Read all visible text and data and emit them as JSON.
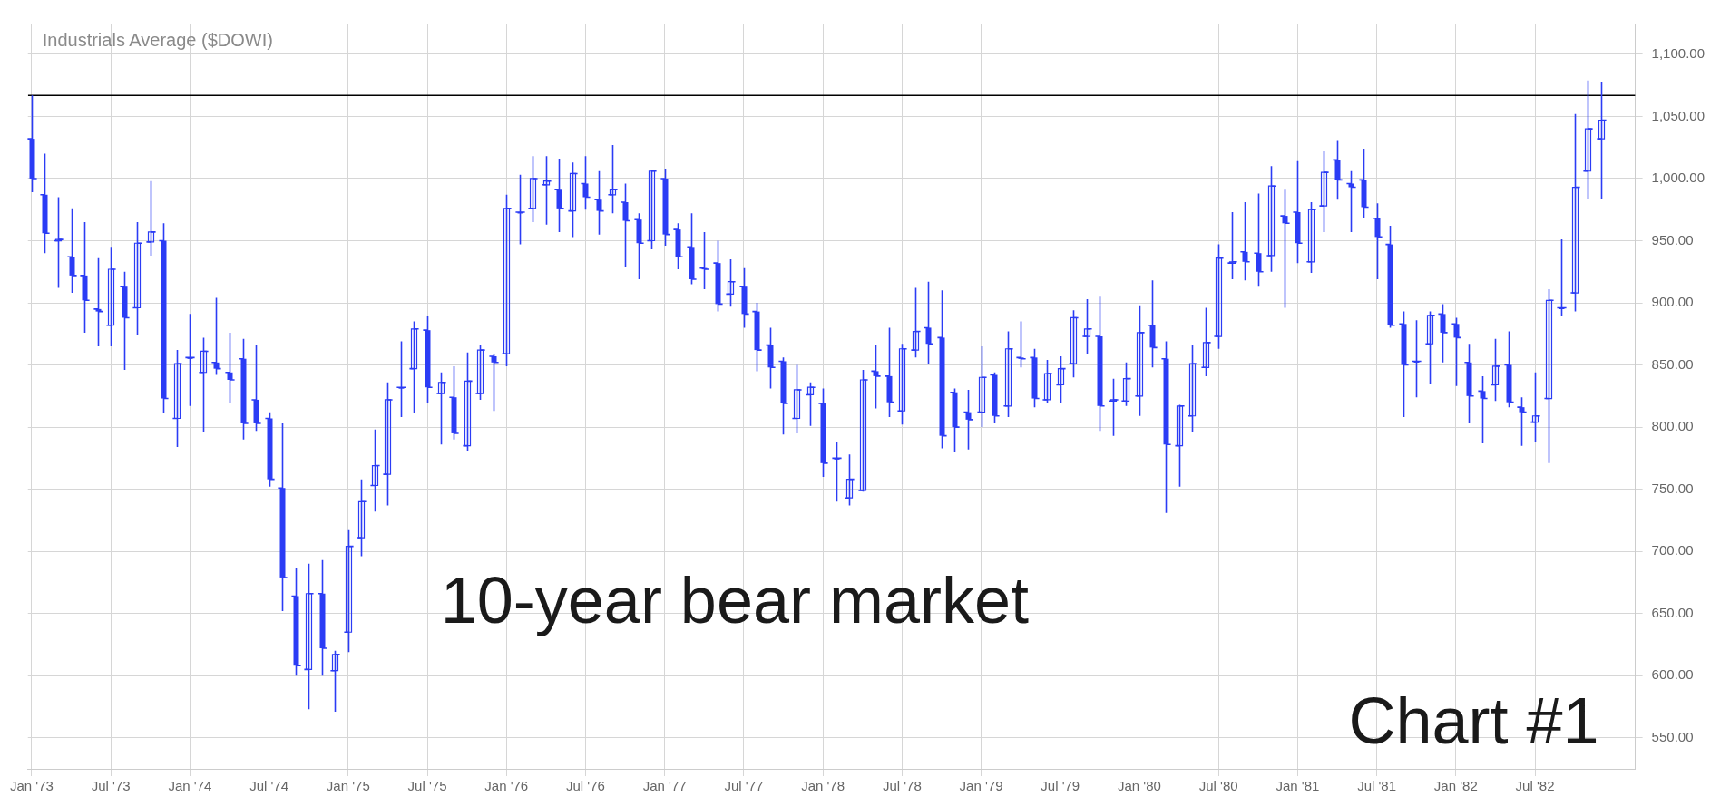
{
  "chart_data": {
    "type": "candlestick",
    "title": "Industrials Average ($DOWI)",
    "annotations": [
      "10-year bear market",
      "Chart #1"
    ],
    "color": "#2b3cf5",
    "grid": true,
    "ref_lines": [
      {
        "axis": "y",
        "value": 1067,
        "color": "#000000"
      }
    ],
    "xlim": [
      "1972-12-23",
      "1983-02-18"
    ],
    "xticks": [
      {
        "value": "1973-01",
        "label": "Jan '73"
      },
      {
        "value": "1973-07",
        "label": "Jul '73"
      },
      {
        "value": "1974-01",
        "label": "Jan '74"
      },
      {
        "value": "1974-07",
        "label": "Jul '74"
      },
      {
        "value": "1975-01",
        "label": "Jan '75"
      },
      {
        "value": "1975-07",
        "label": "Jul '75"
      },
      {
        "value": "1976-01",
        "label": "Jan '76"
      },
      {
        "value": "1976-07",
        "label": "Jul '76"
      },
      {
        "value": "1977-01",
        "label": "Jan '77"
      },
      {
        "value": "1977-07",
        "label": "Jul '77"
      },
      {
        "value": "1978-01",
        "label": "Jan '78"
      },
      {
        "value": "1978-07",
        "label": "Jul '78"
      },
      {
        "value": "1979-01",
        "label": "Jan '79"
      },
      {
        "value": "1979-07",
        "label": "Jul '79"
      },
      {
        "value": "1980-01",
        "label": "Jan '80"
      },
      {
        "value": "1980-07",
        "label": "Jul '80"
      },
      {
        "value": "1981-01",
        "label": "Jan '81"
      },
      {
        "value": "1981-07",
        "label": "Jul '81"
      },
      {
        "value": "1982-01",
        "label": "Jan '82"
      },
      {
        "value": "1982-07",
        "label": "Jul '82"
      }
    ],
    "ylim": [
      525,
      1124
    ],
    "yticks": [
      {
        "value": 550,
        "label": "550.00"
      },
      {
        "value": 600,
        "label": "600.00"
      },
      {
        "value": 650,
        "label": "650.00"
      },
      {
        "value": 700,
        "label": "700.00"
      },
      {
        "value": 750,
        "label": "750.00"
      },
      {
        "value": 800,
        "label": "800.00"
      },
      {
        "value": 850,
        "label": "850.00"
      },
      {
        "value": 900,
        "label": "900.00"
      },
      {
        "value": 950,
        "label": "950.00"
      },
      {
        "value": 1000,
        "label": "1,000.00"
      },
      {
        "value": 1050,
        "label": "1,050.00"
      },
      {
        "value": 1100,
        "label": "1,100.00"
      }
    ],
    "x": [
      "1973-01",
      "1973-02",
      "1973-03",
      "1973-04",
      "1973-05",
      "1973-06",
      "1973-07",
      "1973-08",
      "1973-09",
      "1973-10",
      "1973-11",
      "1973-12",
      "1974-01",
      "1974-02",
      "1974-03",
      "1974-04",
      "1974-05",
      "1974-06",
      "1974-07",
      "1974-08",
      "1974-09",
      "1974-10",
      "1974-11",
      "1974-12",
      "1975-01",
      "1975-02",
      "1975-03",
      "1975-04",
      "1975-05",
      "1975-06",
      "1975-07",
      "1975-08",
      "1975-09",
      "1975-10",
      "1975-11",
      "1975-12",
      "1976-01",
      "1976-02",
      "1976-03",
      "1976-04",
      "1976-05",
      "1976-06",
      "1976-07",
      "1976-08",
      "1976-09",
      "1976-10",
      "1976-11",
      "1976-12",
      "1977-01",
      "1977-02",
      "1977-03",
      "1977-04",
      "1977-05",
      "1977-06",
      "1977-07",
      "1977-08",
      "1977-09",
      "1977-10",
      "1977-11",
      "1977-12",
      "1978-01",
      "1978-02",
      "1978-03",
      "1978-04",
      "1978-05",
      "1978-06",
      "1978-07",
      "1978-08",
      "1978-09",
      "1978-10",
      "1978-11",
      "1978-12",
      "1979-01",
      "1979-02",
      "1979-03",
      "1979-04",
      "1979-05",
      "1979-06",
      "1979-07",
      "1979-08",
      "1979-09",
      "1979-10",
      "1979-11",
      "1979-12",
      "1980-01",
      "1980-02",
      "1980-03",
      "1980-04",
      "1980-05",
      "1980-06",
      "1980-07",
      "1980-08",
      "1980-09",
      "1980-10",
      "1980-11",
      "1980-12",
      "1981-01",
      "1981-02",
      "1981-03",
      "1981-04",
      "1981-05",
      "1981-06",
      "1981-07",
      "1981-08",
      "1981-09",
      "1981-10",
      "1981-11",
      "1981-12",
      "1982-01",
      "1982-02",
      "1982-03",
      "1982-04",
      "1982-05",
      "1982-06",
      "1982-07",
      "1982-08",
      "1982-09",
      "1982-10",
      "1982-11",
      "1982-12"
    ],
    "ohlc": [
      [
        1032,
        1067,
        989,
        1000
      ],
      [
        987,
        1020,
        940,
        956
      ],
      [
        950,
        985,
        912,
        951
      ],
      [
        937,
        976,
        908,
        922
      ],
      [
        922,
        965,
        876,
        902
      ],
      [
        895,
        936,
        865,
        893
      ],
      [
        882,
        945,
        865,
        927
      ],
      [
        913,
        925,
        846,
        888
      ],
      [
        896,
        965,
        874,
        948
      ],
      [
        949,
        998,
        938,
        957
      ],
      [
        950,
        964,
        811,
        823
      ],
      [
        807,
        862,
        784,
        851
      ],
      [
        856,
        891,
        817,
        856
      ],
      [
        844,
        872,
        796,
        861
      ],
      [
        852,
        904,
        842,
        847
      ],
      [
        844,
        876,
        819,
        838
      ],
      [
        855,
        871,
        790,
        803
      ],
      [
        822,
        866,
        797,
        803
      ],
      [
        807,
        812,
        752,
        758
      ],
      [
        751,
        803,
        652,
        679
      ],
      [
        664,
        687,
        600,
        608
      ],
      [
        605,
        690,
        573,
        666
      ],
      [
        666,
        693,
        600,
        622
      ],
      [
        604,
        620,
        571,
        617
      ],
      [
        635,
        717,
        619,
        704
      ],
      [
        711,
        758,
        696,
        740
      ],
      [
        753,
        798,
        732,
        769
      ],
      [
        762,
        836,
        737,
        822
      ],
      [
        832,
        869,
        808,
        832
      ],
      [
        847,
        885,
        811,
        879
      ],
      [
        878,
        889,
        819,
        832
      ],
      [
        827,
        844,
        786,
        836
      ],
      [
        824,
        849,
        790,
        795
      ],
      [
        785,
        860,
        781,
        837
      ],
      [
        827,
        866,
        822,
        862
      ],
      [
        857,
        859,
        813,
        852
      ],
      [
        859,
        987,
        849,
        976
      ],
      [
        973,
        1003,
        947,
        973
      ],
      [
        976,
        1018,
        965,
        1000
      ],
      [
        995,
        1018,
        963,
        998
      ],
      [
        991,
        1016,
        957,
        976
      ],
      [
        974,
        1013,
        953,
        1004
      ],
      [
        996,
        1018,
        975,
        985
      ],
      [
        983,
        1006,
        955,
        974
      ],
      [
        987,
        1027,
        972,
        991
      ],
      [
        981,
        996,
        929,
        966
      ],
      [
        967,
        972,
        919,
        948
      ],
      [
        950,
        1007,
        943,
        1006
      ],
      [
        1000,
        1008,
        946,
        955
      ],
      [
        959,
        964,
        927,
        937
      ],
      [
        945,
        972,
        915,
        919
      ],
      [
        928,
        957,
        911,
        927
      ],
      [
        932,
        950,
        893,
        899
      ],
      [
        907,
        935,
        897,
        917
      ],
      [
        913,
        928,
        880,
        891
      ],
      [
        893,
        900,
        845,
        862
      ],
      [
        866,
        880,
        831,
        848
      ],
      [
        853,
        856,
        794,
        819
      ],
      [
        807,
        850,
        795,
        830
      ],
      [
        826,
        836,
        801,
        832
      ],
      [
        819,
        831,
        760,
        771
      ],
      [
        775,
        788,
        740,
        775
      ],
      [
        743,
        778,
        737,
        758
      ],
      [
        749,
        846,
        748,
        838
      ],
      [
        845,
        866,
        815,
        841
      ],
      [
        841,
        880,
        808,
        820
      ],
      [
        813,
        867,
        802,
        863
      ],
      [
        862,
        912,
        856,
        877
      ],
      [
        880,
        917,
        851,
        867
      ],
      [
        872,
        910,
        783,
        793
      ],
      [
        828,
        831,
        780,
        800
      ],
      [
        812,
        830,
        782,
        806
      ],
      [
        812,
        865,
        800,
        840
      ],
      [
        842,
        844,
        803,
        809
      ],
      [
        817,
        877,
        808,
        863
      ],
      [
        856,
        885,
        848,
        855
      ],
      [
        856,
        863,
        816,
        823
      ],
      [
        822,
        854,
        819,
        843
      ],
      [
        834,
        857,
        819,
        847
      ],
      [
        851,
        894,
        840,
        888
      ],
      [
        873,
        903,
        859,
        879
      ],
      [
        873,
        905,
        797,
        817
      ],
      [
        821,
        839,
        793,
        822
      ],
      [
        821,
        852,
        817,
        839
      ],
      [
        825,
        898,
        809,
        876
      ],
      [
        882,
        918,
        848,
        864
      ],
      [
        855,
        869,
        731,
        786
      ],
      [
        785,
        818,
        752,
        817
      ],
      [
        809,
        866,
        796,
        851
      ],
      [
        848,
        896,
        841,
        868
      ],
      [
        873,
        947,
        863,
        936
      ],
      [
        932,
        973,
        919,
        933
      ],
      [
        941,
        981,
        918,
        933
      ],
      [
        940,
        988,
        913,
        925
      ],
      [
        938,
        1010,
        925,
        994
      ],
      [
        970,
        991,
        896,
        964
      ],
      [
        973,
        1014,
        932,
        948
      ],
      [
        933,
        981,
        924,
        975
      ],
      [
        978,
        1022,
        957,
        1005
      ],
      [
        1015,
        1031,
        983,
        999
      ],
      [
        996,
        1006,
        957,
        993
      ],
      [
        999,
        1024,
        968,
        977
      ],
      [
        968,
        980,
        919,
        953
      ],
      [
        947,
        962,
        880,
        882
      ],
      [
        883,
        893,
        808,
        850
      ],
      [
        853,
        886,
        824,
        853
      ],
      [
        867,
        893,
        835,
        890
      ],
      [
        891,
        899,
        852,
        876
      ],
      [
        883,
        888,
        833,
        872
      ],
      [
        852,
        867,
        803,
        825
      ],
      [
        829,
        841,
        787,
        823
      ],
      [
        834,
        871,
        821,
        849
      ],
      [
        850,
        877,
        816,
        820
      ],
      [
        816,
        824,
        785,
        812
      ],
      [
        804,
        844,
        788,
        809
      ],
      [
        823,
        911,
        771,
        902
      ],
      [
        896,
        951,
        889,
        896
      ],
      [
        908,
        1052,
        893,
        993
      ],
      [
        1006,
        1079,
        984,
        1040
      ],
      [
        1032,
        1078,
        984,
        1047
      ]
    ]
  }
}
